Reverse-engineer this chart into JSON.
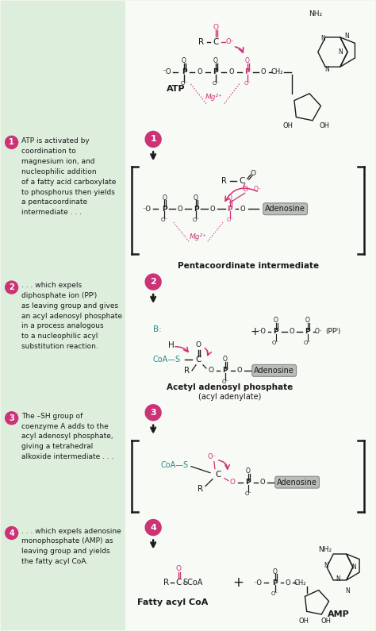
{
  "bg_color": "#f0f5ec",
  "left_bg": "#ddeedd",
  "right_bg": "#ffffff",
  "pink": "#cc3377",
  "teal": "#2a8a8a",
  "black": "#1a1a1a",
  "gray_box": "#b8bdb8",
  "step1_text": "ATP is activated by\ncoordination to\nmagnesium ion, and\nnucleophilic addition\nof a fatty acid carboxylate\nto phosphorus then yields\na pentacoordinate\nintermediate . . .",
  "step2_text": ". . . which expels\ndiphosphate ion (PPᴵ)\nas leaving group and gives\nan acyl adenosyl phosphate\nin a process analogous\nto a nucleophilic acyl\nsubstitution reaction.",
  "step3_text": "The –SH group of\ncoenzyme A adds to the\nacyl adenosyl phosphate,\ngiving a tetrahedral\nalkoxide intermediate . . .",
  "step4_text": ". . . which expels adenosine\nmonophosphate (AMP) as\nleaving group and yields\nthe fatty acyl CoA."
}
